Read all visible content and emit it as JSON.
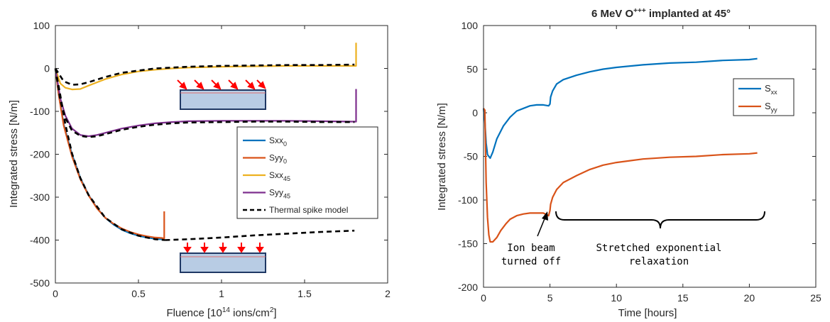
{
  "chart_data": [
    {
      "type": "line",
      "title": "",
      "xlabel_pre": "Fluence [10",
      "xlabel_sup": "14",
      "xlabel_post": " ions/cm",
      "xlabel_sup2": "2",
      "xlabel_end": "]",
      "ylabel": "Integrated stress [N/m]",
      "xlim": [
        0,
        2
      ],
      "ylim": [
        -500,
        100
      ],
      "xticks": [
        "0",
        "0.5",
        "1",
        "1.5",
        "2"
      ],
      "yticks": [
        "100",
        "0",
        "-100",
        "-200",
        "-300",
        "-400",
        "-500"
      ],
      "grid": false,
      "legend_position": "right",
      "series": [
        {
          "name": "Sxx",
          "sub": "0",
          "color": "#0072BD",
          "dash": false,
          "x": [
            0,
            0.02,
            0.05,
            0.1,
            0.15,
            0.2,
            0.25,
            0.3,
            0.35,
            0.4,
            0.45,
            0.5,
            0.55,
            0.6,
            0.63,
            0.65
          ],
          "y": [
            0,
            -60,
            -130,
            -200,
            -255,
            -295,
            -325,
            -348,
            -364,
            -376,
            -384,
            -390,
            -394,
            -397,
            -398,
            -398
          ]
        },
        {
          "name": "Syy",
          "sub": "0",
          "color": "#D95319",
          "dash": false,
          "x": [
            0,
            0.02,
            0.05,
            0.1,
            0.15,
            0.2,
            0.25,
            0.3,
            0.35,
            0.4,
            0.45,
            0.5,
            0.55,
            0.6,
            0.64,
            0.65,
            0.655,
            0.655
          ],
          "y": [
            0,
            -62,
            -133,
            -205,
            -258,
            -296,
            -326,
            -348,
            -362,
            -373,
            -381,
            -387,
            -391,
            -394,
            -395,
            -396,
            -396,
            -333
          ]
        },
        {
          "name": "Sxx",
          "sub": "45",
          "color": "#EDB120",
          "dash": false,
          "x": [
            0,
            0.03,
            0.06,
            0.1,
            0.15,
            0.2,
            0.3,
            0.4,
            0.5,
            0.6,
            0.7,
            0.8,
            1.0,
            1.2,
            1.4,
            1.6,
            1.8,
            1.81,
            1.81
          ],
          "y": [
            0,
            -35,
            -45,
            -49,
            -48,
            -40,
            -25,
            -14,
            -7,
            -3,
            0,
            2,
            4,
            5,
            6,
            6,
            6,
            6,
            60
          ]
        },
        {
          "name": "Syy",
          "sub": "45",
          "color": "#7E2F8E",
          "dash": false,
          "x": [
            0,
            0.03,
            0.06,
            0.1,
            0.15,
            0.2,
            0.25,
            0.3,
            0.4,
            0.5,
            0.6,
            0.7,
            0.8,
            1.0,
            1.2,
            1.4,
            1.6,
            1.8,
            1.81,
            1.81
          ],
          "y": [
            0,
            -70,
            -110,
            -140,
            -155,
            -158,
            -155,
            -150,
            -140,
            -133,
            -128,
            -125,
            -123,
            -122,
            -122,
            -122,
            -123,
            -124,
            -124,
            -48
          ]
        },
        {
          "name": "Thermal spike model",
          "sub": "",
          "color": "#000000",
          "dash": true,
          "x": [
            0,
            0.03,
            0.06,
            0.1,
            0.15,
            0.2,
            0.3,
            0.4,
            0.5,
            0.6,
            0.66
          ],
          "y": [
            0,
            -63,
            -130,
            -198,
            -255,
            -295,
            -348,
            -375,
            -390,
            -398,
            -400
          ]
        },
        {
          "name": "",
          "sub": "",
          "color": "#000000",
          "dash": true,
          "x": [
            0,
            0.05,
            0.1,
            0.15,
            0.2,
            0.3,
            0.4,
            0.6,
            0.8,
            1.0,
            1.2,
            1.4,
            1.6,
            1.8
          ],
          "y": [
            0,
            -30,
            -38,
            -37,
            -32,
            -20,
            -10,
            0,
            4,
            6,
            7,
            8,
            8,
            9
          ]
        },
        {
          "name": "",
          "sub": "",
          "color": "#000000",
          "dash": true,
          "x": [
            0,
            0.03,
            0.06,
            0.1,
            0.15,
            0.2,
            0.25,
            0.3,
            0.4,
            0.5,
            0.6,
            0.7,
            0.8,
            1.0,
            1.2,
            1.4,
            1.6,
            1.8
          ],
          "y": [
            0,
            -75,
            -115,
            -145,
            -157,
            -160,
            -158,
            -153,
            -143,
            -136,
            -131,
            -128,
            -126,
            -125,
            -124,
            -124,
            -125,
            -125
          ]
        },
        {
          "name": "",
          "sub": "",
          "color": "#000000",
          "dash": true,
          "x": [
            0.66,
            0.8,
            1.0,
            1.2,
            1.4,
            1.6,
            1.8
          ],
          "y": [
            -400,
            -398,
            -394,
            -389,
            -385,
            -381,
            -378
          ]
        }
      ]
    },
    {
      "type": "line",
      "title_pre": "6 MeV O",
      "title_sup": "+++",
      "title_post": " implanted at 45°",
      "xlabel": "Time [hours]",
      "ylabel": "Integrated stress [N/m]",
      "xlim": [
        0,
        25
      ],
      "ylim": [
        -200,
        100
      ],
      "xticks": [
        "0",
        "5",
        "10",
        "15",
        "20",
        "25"
      ],
      "yticks": [
        "100",
        "50",
        "0",
        "-50",
        "-100",
        "-150",
        "-200"
      ],
      "grid": false,
      "legend_position": "top-right",
      "series": [
        {
          "name": "S",
          "sub": "xx",
          "color": "#0072BD",
          "x": [
            0,
            0.1,
            0.2,
            0.3,
            0.5,
            0.7,
            1.0,
            1.5,
            2.0,
            2.5,
            3.0,
            3.5,
            4.0,
            4.5,
            4.9,
            5.0,
            5.05,
            5.2,
            5.5,
            6,
            7,
            8,
            9,
            10,
            12,
            14,
            16,
            18,
            20,
            20.6
          ],
          "y": [
            5,
            -10,
            -35,
            -48,
            -52,
            -45,
            -30,
            -15,
            -5,
            2,
            5,
            8,
            9,
            9,
            8,
            10,
            18,
            25,
            33,
            38,
            43,
            47,
            50,
            52,
            55,
            57,
            58,
            60,
            61,
            62
          ]
        },
        {
          "name": "S",
          "sub": "yy",
          "color": "#D95319",
          "x": [
            0,
            0.1,
            0.15,
            0.2,
            0.3,
            0.4,
            0.5,
            0.7,
            1.0,
            1.3,
            1.7,
            2.0,
            2.5,
            3.0,
            3.5,
            4.0,
            4.5,
            4.9,
            5.0,
            5.05,
            5.2,
            5.5,
            6,
            7,
            8,
            9,
            10,
            12,
            14,
            16,
            18,
            20,
            20.6
          ],
          "y": [
            5,
            3,
            -40,
            -80,
            -120,
            -140,
            -148,
            -148,
            -143,
            -135,
            -127,
            -122,
            -118,
            -116,
            -115,
            -115,
            -115,
            -118,
            -112,
            -105,
            -97,
            -88,
            -80,
            -72,
            -65,
            -60,
            -57,
            -53,
            -51,
            -50,
            -48,
            -47,
            -46
          ]
        }
      ],
      "annotations": {
        "ion_beam_1": "Ion beam",
        "ion_beam_2": "turned off",
        "relax_1": "Stretched exponential",
        "relax_2": "relaxation"
      }
    }
  ]
}
